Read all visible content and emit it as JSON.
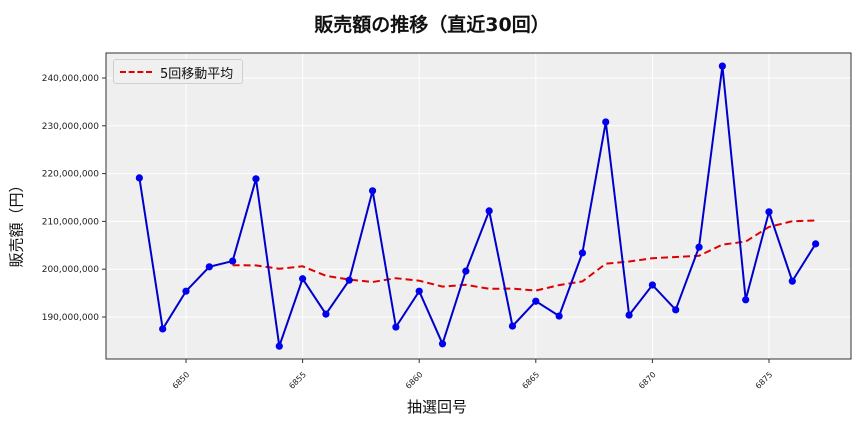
{
  "chart_data": {
    "type": "line",
    "title": "販売額の推移（直近30回）",
    "xlabel": "抽選回号",
    "ylabel": "販売額（円）",
    "legend": {
      "position": "upper left",
      "entries": [
        "5回移動平均"
      ]
    },
    "grid": true,
    "xticks": [
      6850,
      6855,
      6860,
      6865,
      6870,
      6875
    ],
    "yticks": [
      190000000,
      200000000,
      210000000,
      220000000,
      230000000,
      240000000
    ],
    "ytick_labels": [
      "190,000,000",
      "200,000,000",
      "210,000,000",
      "220,000,000",
      "230,000,000",
      "240,000,000"
    ],
    "xlim": [
      6846.6,
      6878.4
    ],
    "ylim": [
      181000000,
      244500000
    ],
    "x": [
      6848,
      6849,
      6850,
      6851,
      6852,
      6853,
      6854,
      6855,
      6856,
      6857,
      6858,
      6859,
      6860,
      6861,
      6862,
      6863,
      6864,
      6865,
      6866,
      6867,
      6868,
      6869,
      6870,
      6871,
      6872,
      6873,
      6874,
      6875,
      6876,
      6877
    ],
    "series": [
      {
        "name": "販売額",
        "style": "solid-marker",
        "color": "#0000cc",
        "values": [
          219100000,
          187500000,
          195400000,
          200500000,
          201700000,
          218900000,
          183900000,
          198000000,
          190600000,
          197700000,
          216400000,
          187900000,
          195400000,
          184400000,
          199600000,
          212200000,
          188100000,
          193300000,
          190200000,
          203400000,
          230800000,
          190400000,
          196700000,
          191500000,
          204600000,
          242500000,
          193600000,
          212000000,
          197500000,
          205300000
        ]
      },
      {
        "name": "5回移動平均",
        "style": "dashed",
        "color": "#e00000",
        "window": 5
      }
    ]
  },
  "legend": {
    "label": "5回移動平均"
  },
  "axes": {
    "xlabel": "抽選回号",
    "ylabel": "販売額（円）"
  },
  "title": "販売額の推移（直近30回）"
}
